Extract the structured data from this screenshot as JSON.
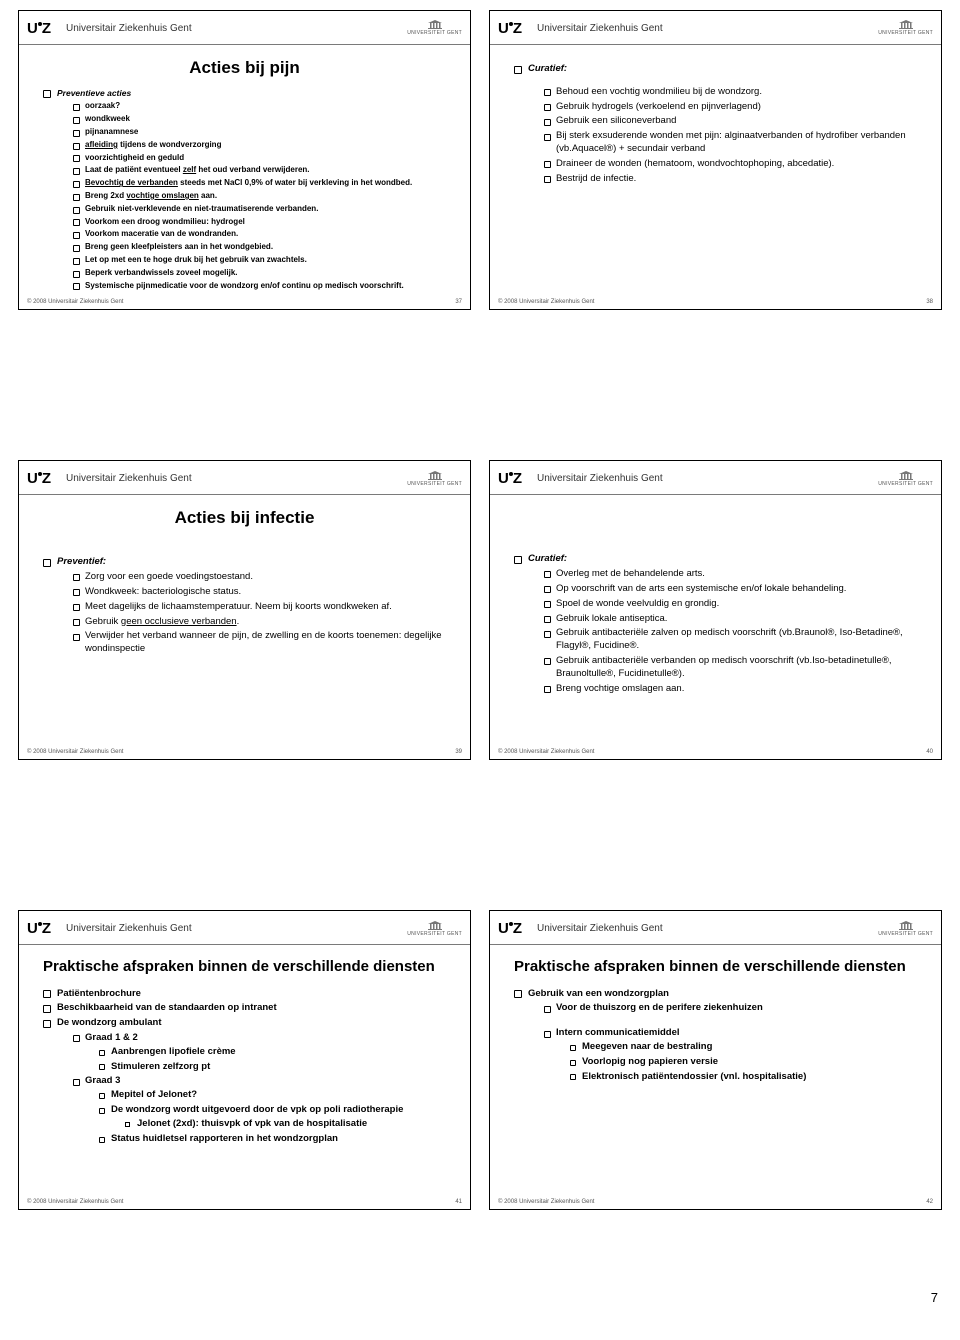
{
  "institution": "Universitair Ziekenhuis Gent",
  "logo_right": "UNIVERSITEIT GENT",
  "footer": "© 2008 Universitair Ziekenhuis Gent",
  "page_number": "7",
  "slides": {
    "s37": {
      "num": "37",
      "title": "Acties bij pijn",
      "heading": "Preventieve acties",
      "items": [
        {
          "t": "oorzaak?",
          "b": 1
        },
        {
          "t": "wondkweek",
          "b": 1
        },
        {
          "t": "pijnanamnese",
          "b": 1
        },
        {
          "t": "afleiding tijdens de wondverzorging",
          "u": "afleiding"
        },
        {
          "t": "voorzichtigheid en geduld",
          "b": 1
        },
        {
          "t": "Laat de patiënt eventueel zelf het oud verband verwijderen.",
          "b": 1,
          "u": "zelf"
        },
        {
          "t": "Bevochtig de verbanden steeds met NaCl 0,9% of water bij verkleving in het wondbed.",
          "b": 1,
          "u": "Bevochtig de verbanden"
        },
        {
          "t": "Breng 2xd vochtige omslagen aan.",
          "b": 1,
          "u": "vochtige omslagen"
        },
        {
          "t": "Gebruik niet-verklevende en niet-traumatiserende verbanden.",
          "b": 1
        },
        {
          "t": "Voorkom een droog wondmilieu: hydrogel",
          "b": 1
        },
        {
          "t": "Voorkom maceratie van de wondranden.",
          "b": 1
        },
        {
          "t": "Breng geen kleefpleisters aan in het wondgebied.",
          "b": 1
        },
        {
          "t": "Let op met een te hoge druk bij het gebruik van zwachtels.",
          "b": 1
        },
        {
          "t": "Beperk verbandwissels zoveel mogelijk.",
          "b": 1
        },
        {
          "t": "Systemische pijnmedicatie voor de wondzorg en/of continu op medisch voorschrift.",
          "b": 1
        }
      ]
    },
    "s38": {
      "num": "38",
      "heading": "Curatief:",
      "items": [
        "Behoud een vochtig wondmilieu bij de wondzorg.",
        "Gebruik hydrogels (verkoelend en pijnverlagend)",
        "Gebruik een siliconeverband",
        "Bij sterk exsuderende wonden met pijn: alginaatverbanden of hydrofiber verbanden (vb.Aquacel®) + secundair verband",
        "Draineer de wonden (hematoom, wondvochtophoping, abcedatie).",
        "Bestrijd de infectie."
      ]
    },
    "s39": {
      "num": "39",
      "title": "Acties bij infectie",
      "heading": "Preventief:",
      "items": [
        "Zorg voor een goede voedingstoestand.",
        "Wondkweek: bacteriologische status.",
        "Meet dagelijks de lichaamstemperatuur. Neem bij koorts wondkweken af.",
        {
          "t": "Gebruik geen occlusieve verbanden.",
          "u": "geen occlusieve verbanden"
        },
        "Verwijder het verband wanneer de pijn, de zwelling en de koorts toenemen: degelijke wondinspectie"
      ]
    },
    "s40": {
      "num": "40",
      "heading": "Curatief:",
      "items": [
        "Overleg met de behandelende arts.",
        "Op voorschrift van de arts een systemische en/of lokale behandeling.",
        "Spoel de wonde veelvuldig en grondig.",
        "Gebruik lokale antiseptica.",
        "Gebruik antibacteriële zalven op medisch voorschrift (vb.Braunol®, Iso-Betadine®, Flagyl®, Fucidine®.",
        "Gebruik antibacteriële verbanden op medisch voorschrift (vb.Iso-betadinetulle®, Braunoltulle®, Fucidinetulle®).",
        "Breng vochtige omslagen aan."
      ]
    },
    "s41": {
      "num": "41",
      "title": "Praktische afspraken binnen de verschillende diensten",
      "l1": [
        {
          "t": "Patiëntenbrochure",
          "b": 1
        },
        {
          "t": "Beschikbaarheid van de standaarden op intranet",
          "b": 1
        },
        {
          "t": "De wondzorg ambulant",
          "b": 1,
          "sub": [
            {
              "t": "Graad 1 & 2",
              "sub": [
                {
                  "t": "Aanbrengen lipofiele crème"
                },
                {
                  "t": "Stimuleren zelfzorg pt"
                }
              ]
            },
            {
              "t": "Graad 3",
              "sub": [
                {
                  "t": "Mepitel of Jelonet?"
                },
                {
                  "t": "De wondzorg wordt uitgevoerd door de vpk op poli radiotherapie",
                  "sub": [
                    {
                      "t": "Jelonet (2xd): thuisvpk of vpk van de hospitalisatie"
                    }
                  ]
                },
                {
                  "t": "Status huidletsel rapporteren in het wondzorgplan"
                }
              ]
            }
          ]
        }
      ]
    },
    "s42": {
      "num": "42",
      "title": "Praktische afspraken binnen de verschillende diensten",
      "l1": [
        {
          "t": "Gebruik van een wondzorgplan",
          "b": 1,
          "sub": [
            {
              "t": "Voor de thuiszorg en de perifere ziekenhuizen"
            },
            {
              "gap": 1
            },
            {
              "t": "Intern communicatiemiddel",
              "sub": [
                {
                  "t": "Meegeven naar de bestraling"
                },
                {
                  "t": "Voorlopig nog papieren versie"
                },
                {
                  "t": "Elektronisch patiëntendossier (vnl. hospitalisatie)"
                }
              ]
            }
          ]
        }
      ]
    }
  }
}
